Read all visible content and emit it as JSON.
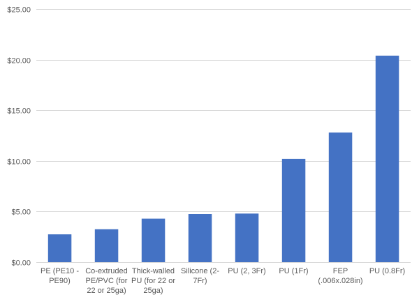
{
  "chart_data": {
    "type": "bar",
    "title": "",
    "xlabel": "",
    "ylabel": "",
    "ylim": [
      0,
      25
    ],
    "yticks": [
      0,
      5,
      10,
      15,
      20,
      25
    ],
    "ytick_labels": [
      "$0.00",
      "$5.00",
      "$10.00",
      "$15.00",
      "$20.00",
      "$25.00"
    ],
    "grid": true,
    "legend": "none",
    "bar_color": "#4472c4",
    "categories": [
      [
        "PE (PE10 -",
        "PE90)"
      ],
      [
        "Co-extruded",
        "PE/PVC (for",
        "22 or 25ga)"
      ],
      [
        "Thick-walled",
        "PU (for 22 or",
        "25ga)"
      ],
      [
        "Silicone (2-",
        "7Fr)"
      ],
      [
        "PU (2, 3Fr)"
      ],
      [
        "PU (1Fr)"
      ],
      [
        "FEP",
        "(.006x.028in)"
      ],
      [
        "PU (0.8Fr)"
      ]
    ],
    "values": [
      2.75,
      3.25,
      4.3,
      4.75,
      4.8,
      10.2,
      12.8,
      20.4
    ]
  }
}
